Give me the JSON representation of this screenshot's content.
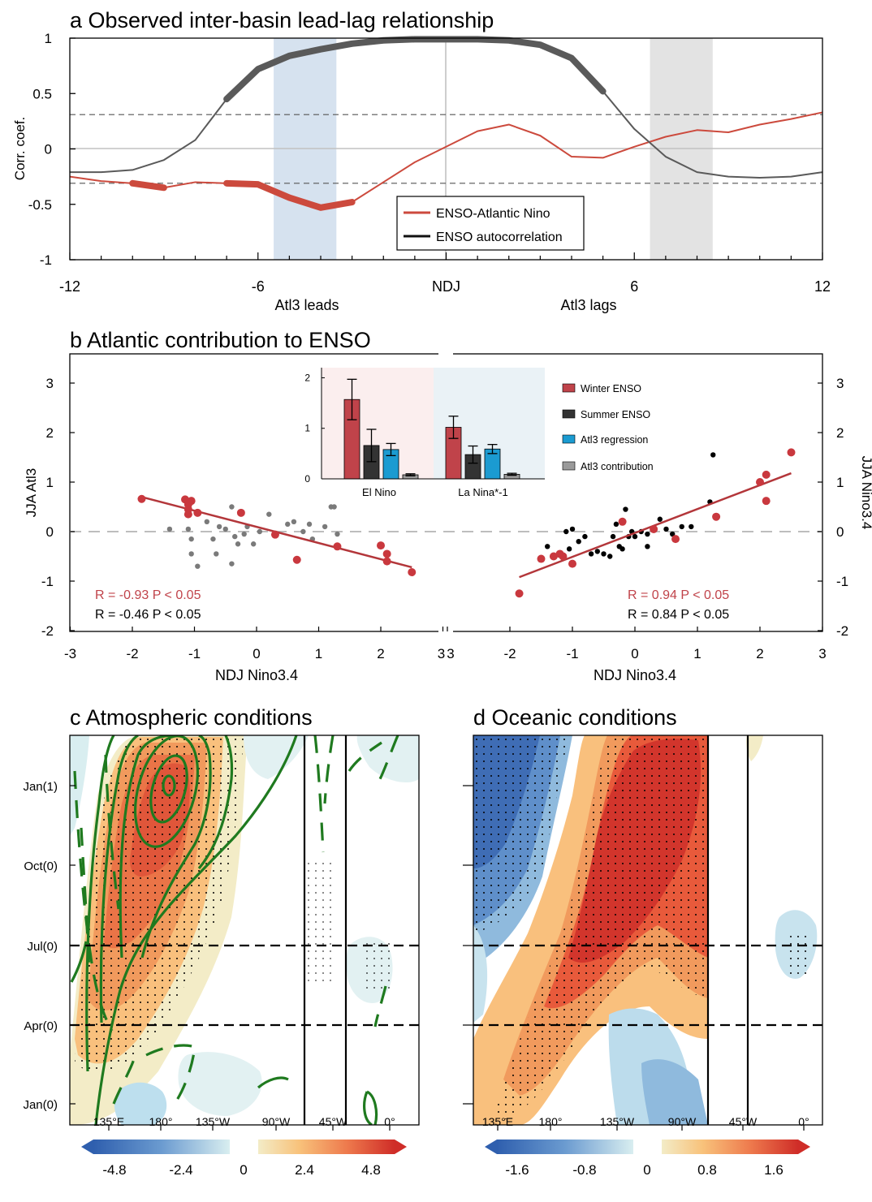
{
  "panel_a": {
    "title": "a Observed inter-basin lead-lag relationship",
    "ylabel": "Corr. coef.",
    "x_ticks": [
      "-12",
      "-6",
      "NDJ",
      "6",
      "12"
    ],
    "x_tick_values": [
      -12,
      -6,
      0,
      6,
      12
    ],
    "y_ticks": [
      "1",
      "0.5",
      "0",
      "-0.5",
      "-1"
    ],
    "y_tick_values": [
      1,
      0.5,
      0,
      -0.5,
      -1
    ],
    "lead_label": "Atl3 leads",
    "lag_label": "Atl3 lags",
    "legend": [
      "ENSO-Atlantic Nino",
      "ENSO autocorrelation"
    ],
    "colors": {
      "red": "#cc4a3d",
      "dark": "#595959",
      "blue_band": "#d6e2ef",
      "grey_band": "#e3e3e3"
    }
  },
  "panel_b": {
    "title": "b Atlantic contribution to ENSO",
    "left_ylabel": "JJA Atl3",
    "right_ylabel": "JJA Nino3.4",
    "xlabel_left": "NDJ Nino3.4",
    "xlabel_right": "NDJ Nino3.4",
    "x_ticks_left": [
      "-3",
      "-2",
      "-1",
      "0",
      "1",
      "2",
      "3"
    ],
    "x_ticks_right": [
      "3",
      "-2",
      "-1",
      "0",
      "1",
      "2",
      "3"
    ],
    "y_ticks": [
      "3",
      "2",
      "1",
      "0",
      "-1",
      "-2"
    ],
    "stats_left": [
      "R = -0.93  P < 0.05",
      "R = -0.46  P < 0.05"
    ],
    "stats_right": [
      "R =  0.94  P < 0.05",
      "R =  0.84  P < 0.05"
    ],
    "inset": {
      "y_ticks": [
        "2",
        "1",
        "0"
      ],
      "groups": [
        "El Nino",
        "La Nina*-1"
      ],
      "legend": [
        "Winter ENSO",
        "Summer ENSO",
        "Atl3 regression",
        "Atl3 contribution"
      ],
      "colors": [
        "#c0434a",
        "#333333",
        "#1b9bd1",
        "#9a9a9a"
      ]
    }
  },
  "panel_c": {
    "title": "c Atmospheric conditions",
    "y_ticks": [
      "Jan(1)",
      "Oct(0)",
      "Jul(0)",
      "Apr(0)",
      "Jan(0)"
    ],
    "x_ticks": [
      "135°E",
      "180°",
      "135°W",
      "90°W",
      "45°W",
      "0°"
    ],
    "colorbar_ticks": [
      "-4.8",
      "-2.4",
      "0",
      "2.4",
      "4.8"
    ]
  },
  "panel_d": {
    "title": "d Oceanic conditions",
    "x_ticks": [
      "135°E",
      "180°",
      "135°W",
      "90°W",
      "45°W",
      "0°"
    ],
    "colorbar_ticks": [
      "-1.6",
      "-0.8",
      "0",
      "0.8",
      "1.6"
    ]
  },
  "chart_data": [
    {
      "type": "line",
      "panel": "a",
      "xlim": [
        -12,
        12
      ],
      "ylim": [
        -1,
        1
      ],
      "x": [
        -12,
        -11,
        -10,
        -9,
        -8,
        -7,
        -6,
        -5,
        -4,
        -3,
        -2,
        -1,
        0,
        1,
        2,
        3,
        4,
        5,
        6,
        7,
        8,
        9,
        10,
        11,
        12
      ],
      "series": [
        {
          "name": "ENSO-Atlantic Nino",
          "values": [
            -0.25,
            -0.29,
            -0.31,
            -0.35,
            -0.3,
            -0.31,
            -0.32,
            -0.44,
            -0.53,
            -0.48,
            -0.3,
            -0.12,
            0.02,
            0.16,
            0.22,
            0.12,
            -0.07,
            -0.08,
            0.02,
            0.11,
            0.17,
            0.15,
            0.22,
            0.27,
            0.33
          ]
        },
        {
          "name": "ENSO autocorrelation",
          "values": [
            -0.21,
            -0.21,
            -0.19,
            -0.1,
            0.08,
            0.45,
            0.72,
            0.84,
            0.9,
            0.95,
            0.98,
            0.99,
            0.99,
            0.99,
            0.98,
            0.94,
            0.82,
            0.52,
            0.18,
            -0.07,
            -0.21,
            -0.25,
            -0.26,
            -0.25,
            -0.21
          ]
        }
      ],
      "significance_threshold": 0.31,
      "shaded_ranges": [
        [
          -5.5,
          -3.5
        ],
        [
          6.5,
          8.5
        ]
      ]
    },
    {
      "type": "bar",
      "panel": "b-inset",
      "categories": [
        "El Nino",
        "La Nina*-1"
      ],
      "ylim": [
        0,
        2.2
      ],
      "series": [
        {
          "name": "Winter ENSO",
          "values": [
            1.57,
            1.02
          ],
          "errors": [
            0.4,
            0.22
          ]
        },
        {
          "name": "Summer ENSO",
          "values": [
            0.66,
            0.48
          ],
          "errors": [
            0.32,
            0.17
          ]
        },
        {
          "name": "Atl3 regression",
          "values": [
            0.58,
            0.59
          ],
          "errors": [
            0.12,
            0.09
          ]
        },
        {
          "name": "Atl3 contribution",
          "values": [
            0.08,
            0.09
          ],
          "errors": [
            0.02,
            0.02
          ]
        }
      ]
    },
    {
      "type": "scatter",
      "panel": "b-left",
      "xlim": [
        -3,
        3
      ],
      "ylim": [
        -2,
        3.4
      ],
      "points_red": [
        [
          -1.85,
          0.66
        ],
        [
          -1.15,
          0.65
        ],
        [
          -1.1,
          0.55
        ],
        [
          -1.05,
          0.62
        ],
        [
          -1.1,
          0.35
        ],
        [
          -1.1,
          0.45
        ],
        [
          -0.95,
          0.38
        ],
        [
          -0.25,
          0.38
        ],
        [
          0.3,
          -0.06
        ],
        [
          0.65,
          -0.57
        ],
        [
          1.3,
          -0.3
        ],
        [
          2.0,
          -0.28
        ],
        [
          2.1,
          -0.45
        ],
        [
          2.1,
          -0.6
        ],
        [
          2.5,
          -0.82
        ]
      ],
      "points_grey": [
        [
          -1.4,
          0.05
        ],
        [
          -1.1,
          0.05
        ],
        [
          -1.05,
          -0.15
        ],
        [
          -0.8,
          0.2
        ],
        [
          -0.7,
          -0.15
        ],
        [
          -0.6,
          0.1
        ],
        [
          -0.5,
          0.05
        ],
        [
          -0.4,
          0.5
        ],
        [
          -0.35,
          -0.1
        ],
        [
          -0.3,
          -0.25
        ],
        [
          -0.2,
          -0.05
        ],
        [
          -0.15,
          0.1
        ],
        [
          -0.05,
          -0.25
        ],
        [
          0.05,
          0.0
        ],
        [
          0.2,
          0.35
        ],
        [
          0.3,
          -0.05
        ],
        [
          0.5,
          0.15
        ],
        [
          0.6,
          0.2
        ],
        [
          0.75,
          0.0
        ],
        [
          0.85,
          0.15
        ],
        [
          0.9,
          -0.15
        ],
        [
          1.1,
          0.1
        ],
        [
          1.2,
          0.5
        ],
        [
          1.25,
          0.5
        ],
        [
          1.3,
          -0.05
        ],
        [
          -1.05,
          -0.45
        ],
        [
          -0.95,
          -0.7
        ],
        [
          -0.4,
          -0.65
        ],
        [
          -0.65,
          -0.45
        ]
      ],
      "fit_red": [
        [
          -1.85,
          0.7
        ],
        [
          2.5,
          -0.72
        ]
      ]
    },
    {
      "type": "scatter",
      "panel": "b-right",
      "xlim": [
        -3,
        3
      ],
      "ylim": [
        -2,
        3.4
      ],
      "points_red": [
        [
          -1.85,
          -1.25
        ],
        [
          -1.5,
          -0.55
        ],
        [
          -1.3,
          -0.5
        ],
        [
          -1.2,
          -0.45
        ],
        [
          -1.15,
          -0.5
        ],
        [
          -1.0,
          -0.65
        ],
        [
          -0.2,
          0.2
        ],
        [
          0.3,
          0.05
        ],
        [
          0.65,
          -0.15
        ],
        [
          1.3,
          0.3
        ],
        [
          2.0,
          1.0
        ],
        [
          2.1,
          1.15
        ],
        [
          2.1,
          0.62
        ],
        [
          2.5,
          1.6
        ]
      ],
      "points_black": [
        [
          -1.4,
          -0.3
        ],
        [
          -1.1,
          0.0
        ],
        [
          -1.0,
          0.05
        ],
        [
          -0.9,
          -0.2
        ],
        [
          -0.8,
          -0.1
        ],
        [
          -0.7,
          -0.45
        ],
        [
          -0.6,
          -0.4
        ],
        [
          -0.5,
          -0.45
        ],
        [
          -0.4,
          -0.5
        ],
        [
          -0.35,
          -0.1
        ],
        [
          -0.3,
          0.15
        ],
        [
          -0.2,
          -0.35
        ],
        [
          -0.15,
          0.45
        ],
        [
          -0.1,
          -0.1
        ],
        [
          0.0,
          -0.1
        ],
        [
          0.1,
          0.0
        ],
        [
          0.2,
          -0.05
        ],
        [
          0.4,
          0.25
        ],
        [
          0.5,
          0.05
        ],
        [
          0.6,
          -0.05
        ],
        [
          0.75,
          0.1
        ],
        [
          0.9,
          0.1
        ],
        [
          1.2,
          0.6
        ],
        [
          1.25,
          1.55
        ],
        [
          -0.05,
          0.0
        ],
        [
          -1.05,
          -0.35
        ],
        [
          0.2,
          -0.3
        ],
        [
          -0.25,
          -0.3
        ]
      ],
      "fit_red": [
        [
          -1.85,
          -0.92
        ],
        [
          2.5,
          1.18
        ]
      ]
    },
    {
      "type": "heatmap",
      "panel": "c",
      "ylim_months": [
        "Jan(0)",
        "Jan(1)"
      ],
      "colorbar": [
        -4.8,
        -2.4,
        0,
        2.4,
        4.8
      ]
    },
    {
      "type": "heatmap",
      "panel": "d",
      "ylim_months": [
        "Jan(0)",
        "Jan(1)"
      ],
      "colorbar": [
        -1.6,
        -0.8,
        0,
        0.8,
        1.6
      ]
    }
  ]
}
